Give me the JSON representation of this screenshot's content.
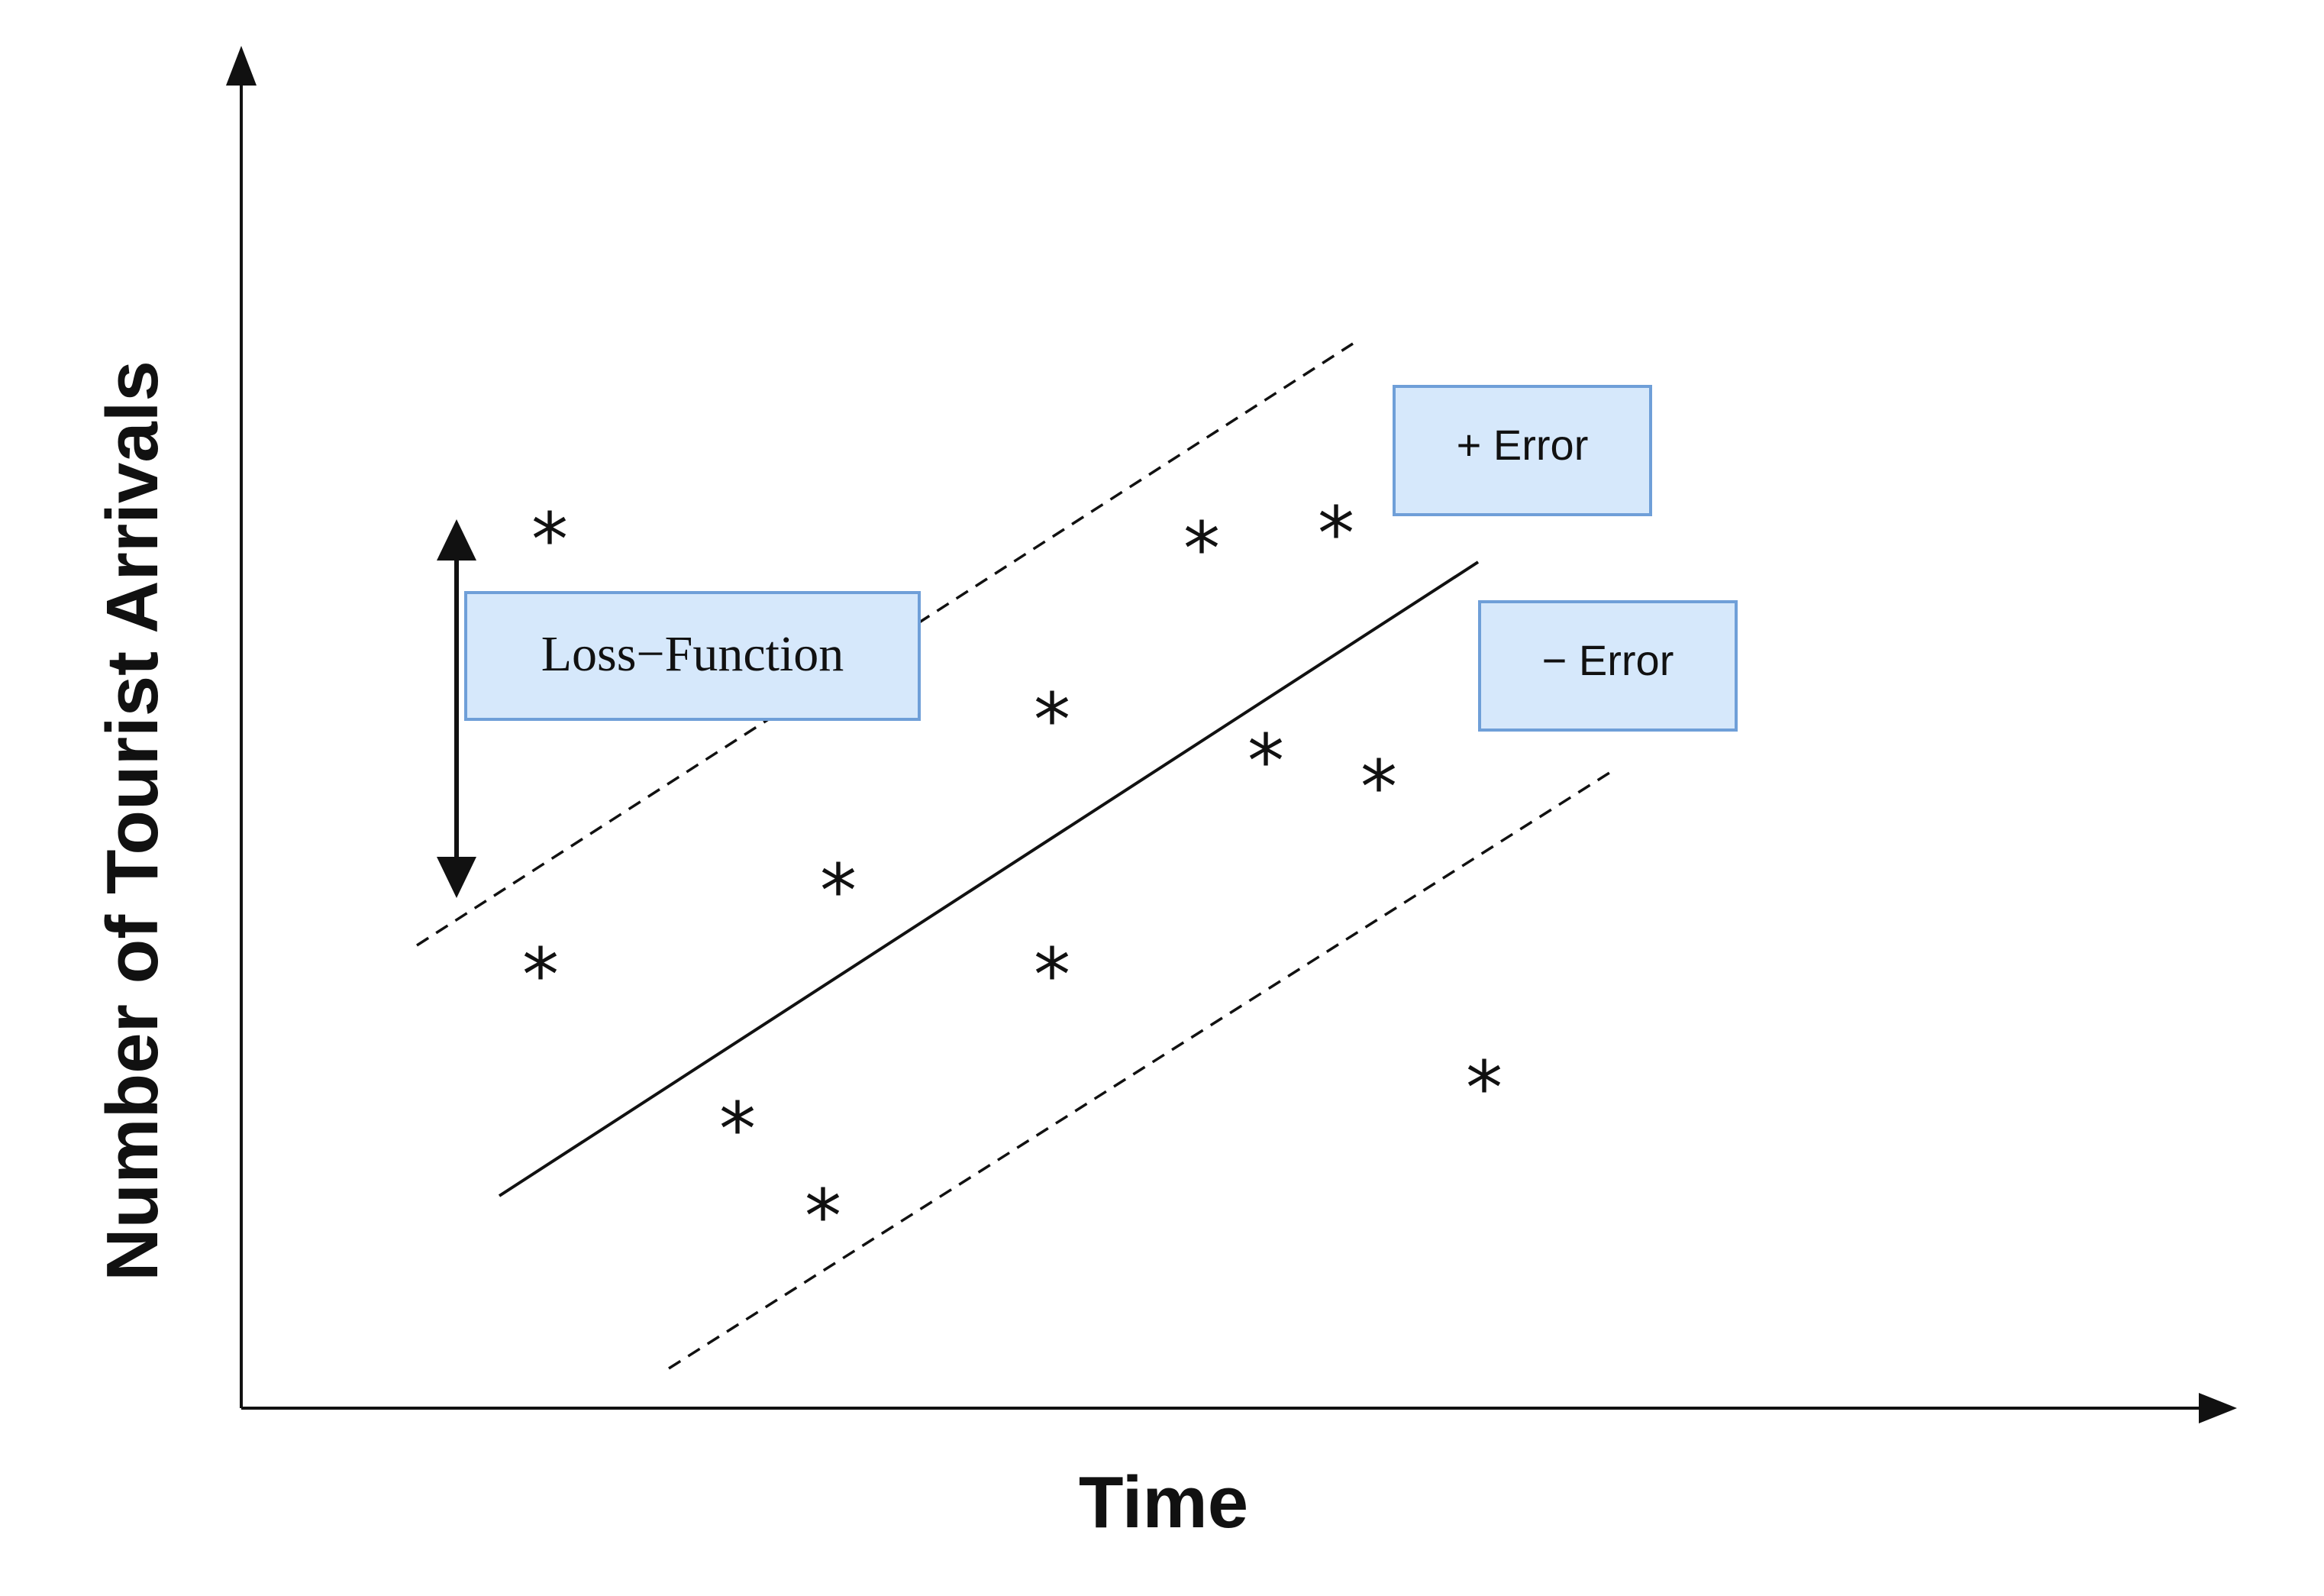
{
  "diagram": {
    "axis_titles": {
      "x": "Time",
      "y": "Number of Tourist Arrivals"
    },
    "labels": {
      "loss_function": "Loss−Function",
      "plus_error": "+ Error",
      "minus_error": "− Error"
    },
    "data_marker": "*",
    "colors": {
      "box_fill": "#d6e8fb",
      "box_stroke": "#6f9fd8",
      "ink": "#111111"
    }
  }
}
